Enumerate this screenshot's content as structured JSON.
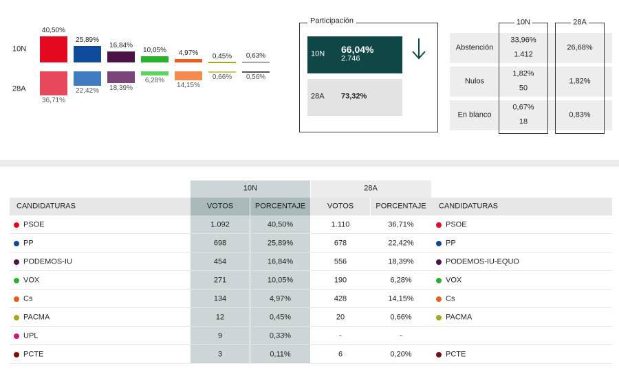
{
  "comparison": {
    "series_labels": [
      "10N",
      "28A"
    ],
    "bars": [
      {
        "colors": [
          "#e30a1f",
          "#e8485c"
        ],
        "values": [
          40.5,
          36.71
        ],
        "value_labels": [
          "40,50%",
          "36,71%"
        ]
      },
      {
        "colors": [
          "#0d4b9a",
          "#3f7cc0"
        ],
        "values": [
          25.89,
          22.42
        ],
        "value_labels": [
          "25,89%",
          "22,42%"
        ]
      },
      {
        "colors": [
          "#4a1245",
          "#7b4479"
        ],
        "values": [
          16.84,
          18.39
        ],
        "value_labels": [
          "16,84%",
          "18,39%"
        ]
      },
      {
        "colors": [
          "#27b32c",
          "#5cd45f"
        ],
        "values": [
          10.05,
          6.28
        ],
        "value_labels": [
          "10,05%",
          "6,28%"
        ]
      },
      {
        "colors": [
          "#ef5b1e",
          "#f58a4f"
        ],
        "values": [
          4.97,
          14.15
        ],
        "value_labels": [
          "4,97%",
          "14,15%"
        ]
      },
      {
        "colors": [
          "#a6a81a",
          "#c7c95c"
        ],
        "values": [
          0.45,
          0.66
        ],
        "value_labels": [
          "0,45%",
          "0,66%"
        ]
      },
      {
        "colors": [
          "#333333",
          "#555555"
        ],
        "values": [
          0.63,
          0.56
        ],
        "value_labels": [
          "0,63%",
          "0,56%"
        ]
      }
    ]
  },
  "participation": {
    "title": "Participación",
    "rows": [
      {
        "label": "10N",
        "percent": "66,04%",
        "count": "2.746"
      },
      {
        "label": "28A",
        "percent": "73,32%"
      }
    ]
  },
  "turnout_details": {
    "columns": [
      "10N",
      "28A"
    ],
    "rows": [
      {
        "label": "Abstención",
        "first": [
          "33,96%",
          "1.412"
        ],
        "second": "26,68%"
      },
      {
        "label": "Nulos",
        "first": [
          "1,82%",
          "50"
        ],
        "second": "1,82%"
      },
      {
        "label": "En blanco",
        "first": [
          "0,67%",
          "18"
        ],
        "second": "0,83%"
      }
    ]
  },
  "results": {
    "groups": [
      "10N",
      "28A"
    ],
    "columns": [
      "CANDIDATURAS",
      "VOTOS",
      "PORCENTAJE",
      "VOTOS",
      "PORCENTAJE",
      "CANDIDATURAS"
    ],
    "rows": [
      {
        "color": "#e30a1f",
        "cells": [
          "PSOE",
          "1.092",
          "40,50%",
          "1.110",
          "36,71%",
          "PSOE"
        ]
      },
      {
        "color": "#0d4b9a",
        "cells": [
          "PP",
          "698",
          "25,89%",
          "678",
          "22,42%",
          "PP"
        ]
      },
      {
        "color": "#4a1245",
        "cells": [
          "PODEMOS-IU",
          "454",
          "16,84%",
          "556",
          "18,39%",
          "PODEMOS-IU-EQUO"
        ]
      },
      {
        "color": "#27b32c",
        "cells": [
          "VOX",
          "271",
          "10,05%",
          "190",
          "6,28%",
          "VOX"
        ]
      },
      {
        "color": "#ef5b1e",
        "cells": [
          "Cs",
          "134",
          "4,97%",
          "428",
          "14,15%",
          "Cs"
        ]
      },
      {
        "color": "#a6a81a",
        "cells": [
          "PACMA",
          "12",
          "0,45%",
          "20",
          "0,66%",
          "PACMA"
        ]
      },
      {
        "color": "#d1177a",
        "cells": [
          "UPL",
          "9",
          "0,33%",
          "-",
          "-",
          null
        ]
      },
      {
        "color": "#7a0f0f",
        "cells": [
          "PCTE",
          "3",
          "0,11%",
          "6",
          "0,20%",
          "PCTE"
        ]
      }
    ]
  }
}
